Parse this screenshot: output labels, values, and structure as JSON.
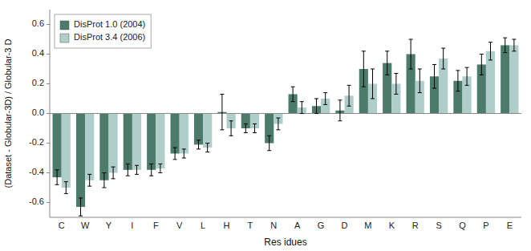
{
  "chart_data": {
    "type": "bar",
    "categories": [
      "C",
      "W",
      "Y",
      "I",
      "F",
      "V",
      "L",
      "H",
      "T",
      "N",
      "A",
      "G",
      "D",
      "M",
      "K",
      "R",
      "S",
      "Q",
      "P",
      "E"
    ],
    "series": [
      {
        "name": "DisProt 1.0 (2004)",
        "color": "#4d7b6b",
        "values": [
          -0.43,
          -0.63,
          -0.45,
          -0.38,
          -0.38,
          -0.27,
          -0.21,
          0.01,
          -0.1,
          -0.2,
          0.13,
          0.05,
          0.02,
          0.3,
          0.34,
          0.4,
          0.25,
          0.22,
          0.33,
          0.46
        ],
        "errors": [
          0.05,
          0.06,
          0.05,
          0.04,
          0.04,
          0.04,
          0.03,
          0.12,
          0.03,
          0.05,
          0.05,
          0.05,
          0.07,
          0.12,
          0.08,
          0.1,
          0.08,
          0.07,
          0.07,
          0.05
        ]
      },
      {
        "name": "DisProt 3.4 (2006)",
        "color": "#b0cec9",
        "values": [
          -0.5,
          -0.45,
          -0.4,
          -0.38,
          -0.37,
          -0.27,
          -0.23,
          -0.1,
          -0.1,
          -0.07,
          0.04,
          0.1,
          0.12,
          0.2,
          0.2,
          0.22,
          0.37,
          0.25,
          0.42,
          0.46
        ],
        "errors": [
          0.04,
          0.04,
          0.04,
          0.03,
          0.03,
          0.03,
          0.03,
          0.05,
          0.03,
          0.04,
          0.04,
          0.04,
          0.07,
          0.1,
          0.07,
          0.08,
          0.07,
          0.06,
          0.06,
          0.04
        ]
      }
    ],
    "xlabel": "Res idues",
    "ylabel": "(Dataset - Globular-3D) / Globular-3 D",
    "ylim": [
      -0.7,
      0.7
    ],
    "yticks": [
      -0.6,
      -0.4,
      -0.2,
      {
        "value": 0.0,
        "label": "0.0"
      },
      0.2,
      0.4,
      0.6
    ],
    "grid": false,
    "legend": "upper left"
  }
}
